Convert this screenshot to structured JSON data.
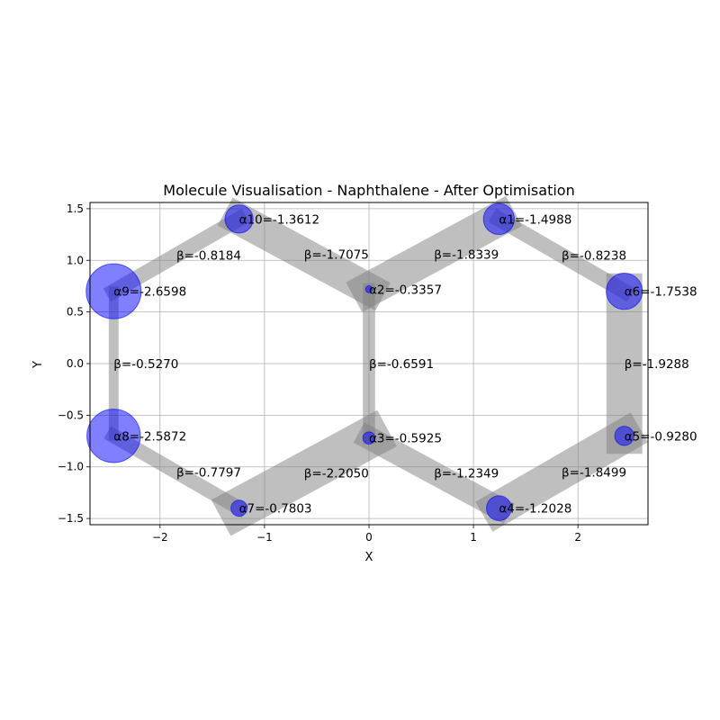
{
  "chart_data": {
    "type": "scatter",
    "title": "Molecule Visualisation - Naphthalene - After Optimisation",
    "xlabel": "X",
    "ylabel": "Y",
    "xlim": [
      -2.67,
      2.67
    ],
    "ylim": [
      -1.56,
      1.56
    ],
    "xticks": [
      -2,
      -1,
      0,
      1,
      2
    ],
    "yticks": [
      -1.5,
      -1.0,
      -0.5,
      0.0,
      0.5,
      1.0,
      1.5
    ],
    "grid": true,
    "colors": {
      "atom": "#0000ff",
      "bond": "#808080"
    },
    "atoms": [
      {
        "id": 1,
        "label": "α1=-1.4988",
        "x": 1.2435,
        "y": 1.4,
        "alpha": -1.4988
      },
      {
        "id": 2,
        "label": "α2=-0.3357",
        "x": 0.0,
        "y": 0.72,
        "alpha": -0.3357
      },
      {
        "id": 3,
        "label": "α3=-0.5925",
        "x": 0.0,
        "y": -0.72,
        "alpha": -0.5925
      },
      {
        "id": 4,
        "label": "α4=-1.2028",
        "x": 1.2435,
        "y": -1.4,
        "alpha": -1.2028
      },
      {
        "id": 5,
        "label": "α5=-0.9280",
        "x": 2.4435,
        "y": -0.7,
        "alpha": -0.928
      },
      {
        "id": 6,
        "label": "α6=-1.7538",
        "x": 2.4435,
        "y": 0.7,
        "alpha": -1.7538
      },
      {
        "id": 7,
        "label": "α7=-0.7803",
        "x": -1.2435,
        "y": -1.4,
        "alpha": -0.7803
      },
      {
        "id": 8,
        "label": "α8=-2.5872",
        "x": -2.4435,
        "y": -0.7,
        "alpha": -2.5872
      },
      {
        "id": 9,
        "label": "α9=-2.6598",
        "x": -2.4435,
        "y": 0.7,
        "alpha": -2.6598
      },
      {
        "id": 10,
        "label": "α10=-1.3612",
        "x": -1.2435,
        "y": 1.4,
        "alpha": -1.3612
      }
    ],
    "bonds": [
      {
        "from": 1,
        "to": 2,
        "beta": -1.8339,
        "label": "β=-1.8339"
      },
      {
        "from": 2,
        "to": 3,
        "beta": -0.6591,
        "label": "β=-0.6591"
      },
      {
        "from": 3,
        "to": 4,
        "beta": -1.2349,
        "label": "β=-1.2349"
      },
      {
        "from": 4,
        "to": 5,
        "beta": -1.8499,
        "label": "β=-1.8499"
      },
      {
        "from": 5,
        "to": 6,
        "beta": -1.9288,
        "label": "β=-1.9288"
      },
      {
        "from": 6,
        "to": 1,
        "beta": -0.8238,
        "label": "β=-0.8238"
      },
      {
        "from": 2,
        "to": 10,
        "beta": -1.7075,
        "label": "β=-1.7075"
      },
      {
        "from": 10,
        "to": 9,
        "beta": -0.8184,
        "label": "β=-0.8184"
      },
      {
        "from": 9,
        "to": 8,
        "beta": -0.527,
        "label": "β=-0.5270"
      },
      {
        "from": 8,
        "to": 7,
        "beta": -0.7797,
        "label": "β=-0.7797"
      },
      {
        "from": 7,
        "to": 3,
        "beta": -2.205,
        "label": "β=-2.2050"
      }
    ]
  }
}
